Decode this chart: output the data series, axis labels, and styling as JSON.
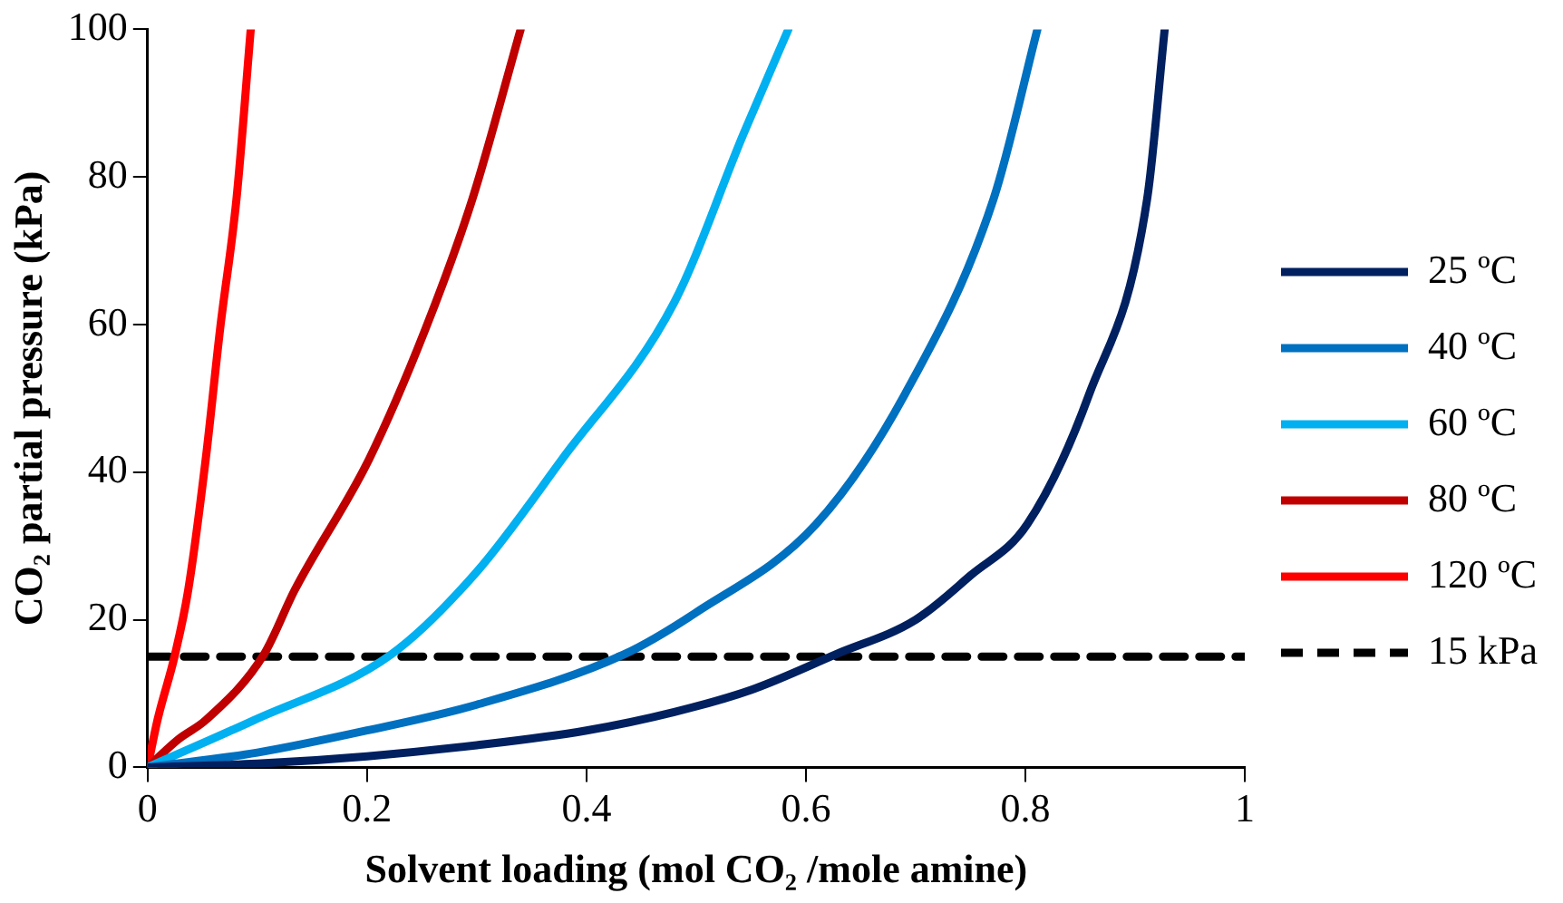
{
  "chart_data": {
    "type": "line",
    "xlabel": "Solvent loading (mol CO₂ /mole amine)",
    "ylabel": "CO₂ partial pressure (kPa)",
    "xlim": [
      0,
      1
    ],
    "xticks": [
      0,
      0.2,
      0.4,
      0.6,
      0.8,
      1
    ],
    "ylim": [
      0,
      100
    ],
    "yticks": [
      0,
      20,
      40,
      60,
      80,
      100
    ],
    "grid": false,
    "legend": "right",
    "marker": "none",
    "line_style": "solid",
    "series": [
      {
        "name": "25 ºC",
        "color": "#002060",
        "x": [
          0,
          0.1,
          0.2,
          0.3,
          0.4,
          0.48,
          0.55,
          0.627,
          0.7,
          0.75,
          0.802,
          0.858,
          0.911,
          0.927
        ],
        "values": [
          0,
          0.5,
          1.5,
          3,
          5,
          7.5,
          10.5,
          15.3,
          20,
          26,
          33,
          50.5,
          77,
          100
        ]
      },
      {
        "name": "40 ºC",
        "color": "#0070c0",
        "x": [
          0,
          0.1,
          0.2,
          0.3,
          0.434,
          0.5,
          0.609,
          0.69,
          0.771,
          0.811
        ],
        "values": [
          0,
          2,
          5,
          8.5,
          15.3,
          21,
          32.9,
          50.5,
          77,
          100
        ]
      },
      {
        "name": "60 ºC",
        "color": "#00b0f0",
        "x": [
          0,
          0.097,
          0.222,
          0.3,
          0.378,
          0.48,
          0.543,
          0.584
        ],
        "values": [
          0,
          6.4,
          15.3,
          26.5,
          41.8,
          63,
          85.8,
          100
        ]
      },
      {
        "name": "80 ºC",
        "color": "#c00000",
        "x": [
          0,
          0.028,
          0.053,
          0.106,
          0.134,
          0.202,
          0.253,
          0.296,
          0.34
        ],
        "values": [
          0,
          3.8,
          6.4,
          15.3,
          24,
          41.8,
          59.3,
          77,
          100
        ]
      },
      {
        "name": "120 ºC",
        "color": "#ff0000",
        "x": [
          0,
          0.009,
          0.025,
          0.037,
          0.053,
          0.066,
          0.081,
          0.094
        ],
        "values": [
          0,
          6.4,
          15.3,
          24,
          41.8,
          59.3,
          77,
          100
        ]
      },
      {
        "name": "15 kPa",
        "color": "#000000",
        "line_style": "dashed",
        "x": [
          0,
          1
        ],
        "values": [
          15,
          15
        ]
      }
    ]
  }
}
